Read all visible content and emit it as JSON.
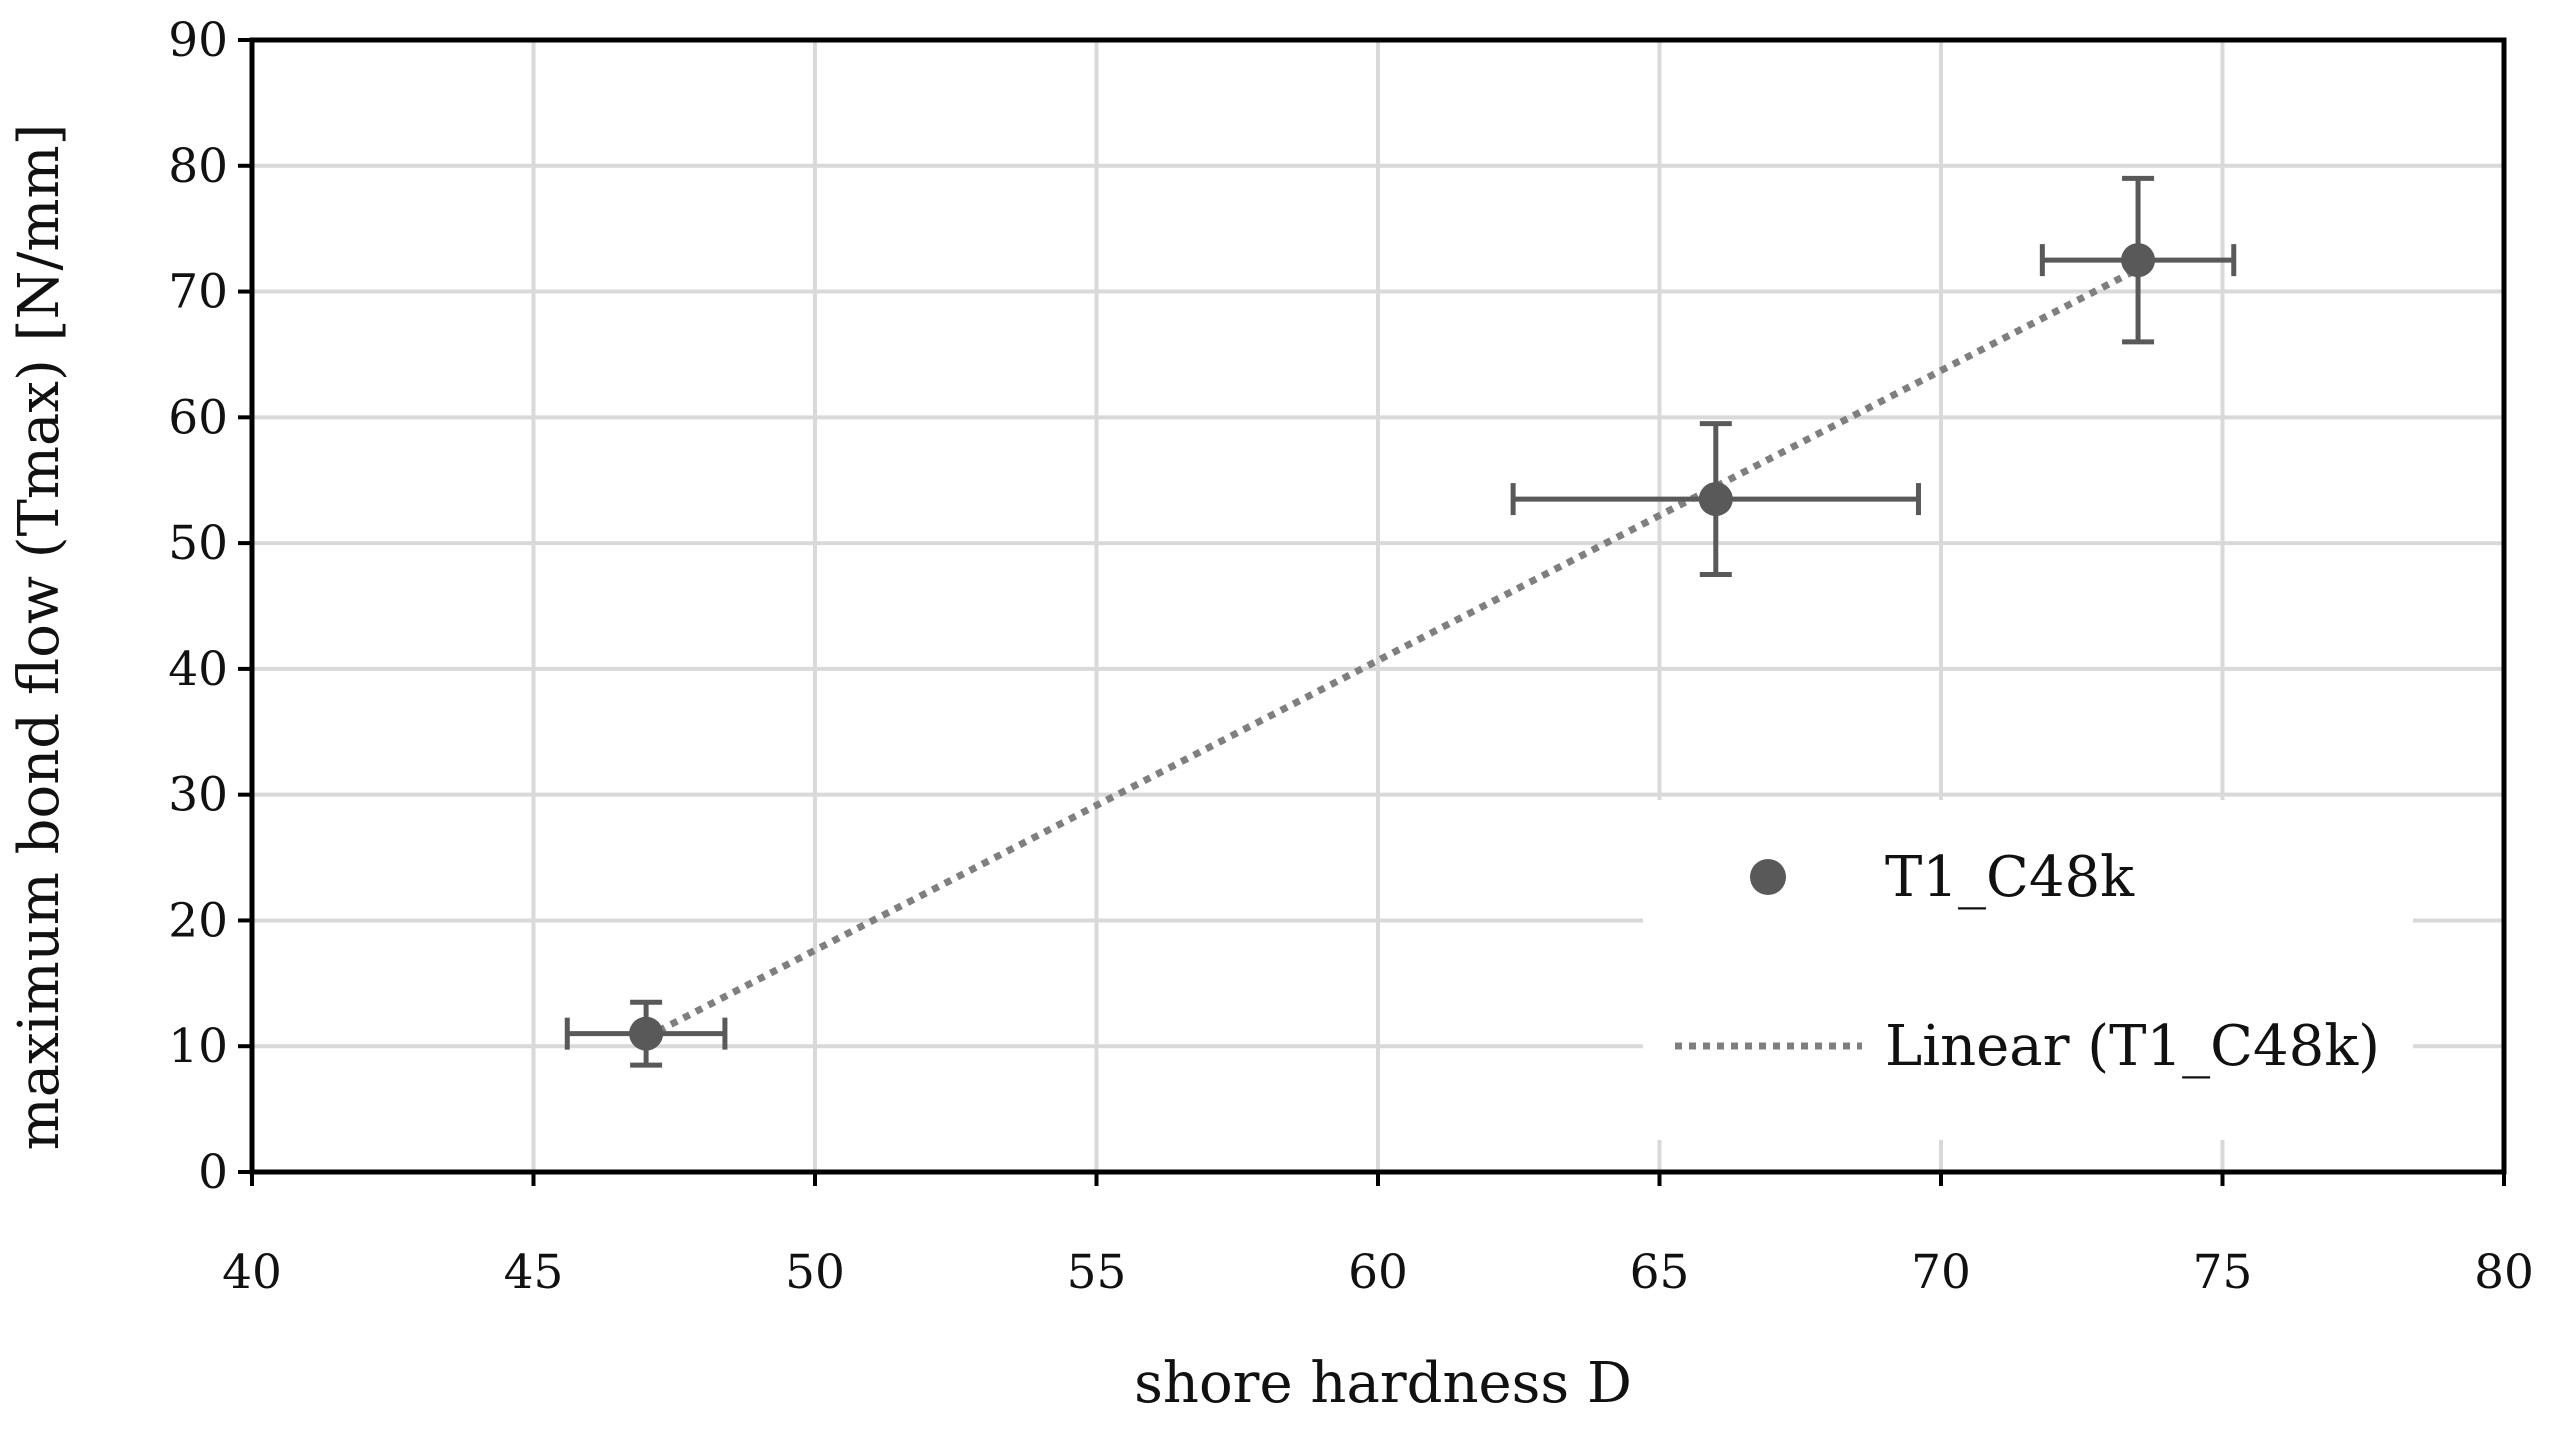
{
  "chart_data": {
    "type": "scatter",
    "title": "",
    "xlabel": "shore hardness D",
    "ylabel": "maximum bond flow (Tmax) [N/mm]",
    "xlim": [
      40,
      80
    ],
    "ylim": [
      0,
      90
    ],
    "xticks": [
      40,
      45,
      50,
      55,
      60,
      65,
      70,
      75,
      80
    ],
    "yticks": [
      0,
      10,
      20,
      30,
      40,
      50,
      60,
      70,
      80,
      90
    ],
    "xtick_labels": [
      "40",
      "45",
      "50",
      "55",
      "60",
      "65",
      "70",
      "75",
      "80"
    ],
    "ytick_labels": [
      "0",
      "10",
      "20",
      "30",
      "40",
      "50",
      "60",
      "70",
      "80",
      "90"
    ],
    "grid": true,
    "legend_position": "bottom-right",
    "series": [
      {
        "name": "T1_C48k",
        "marker": "circle",
        "color": "#595959",
        "points": [
          {
            "x": 47.0,
            "y": 11.0,
            "x_err": 1.4,
            "y_err": 2.5
          },
          {
            "x": 66.0,
            "y": 53.5,
            "x_err": 3.6,
            "y_err": 6.0
          },
          {
            "x": 73.5,
            "y": 72.5,
            "x_err": 1.7,
            "y_err": 6.5
          }
        ]
      }
    ],
    "trendline": {
      "name": "Linear (T1_C48k)",
      "type": "linear",
      "style": "dotted",
      "color": "#7f7f7f",
      "x_range": [
        47.0,
        73.5
      ]
    },
    "colors": {
      "grid": "#d9d9d9",
      "axis": "#000000",
      "marker": "#595959",
      "trendline": "#7f7f7f"
    }
  }
}
